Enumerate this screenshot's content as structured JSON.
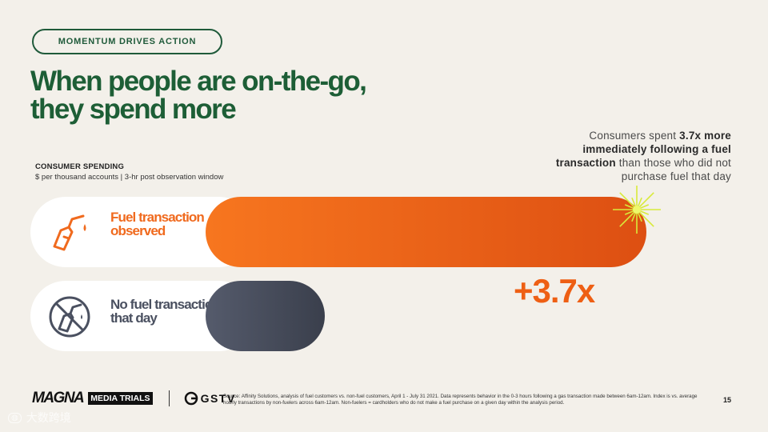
{
  "tag": "MOMENTUM DRIVES ACTION",
  "headline": {
    "line1": "When people are on-the-go,",
    "line2": "they spend more"
  },
  "callout": {
    "pre": "Consumers spent ",
    "bold": "3.7x more immediately following a fuel transaction",
    "post": " than those who did not purchase fuel that day"
  },
  "chart_title": "CONSUMER SPENDING",
  "chart_subtitle": "$ per thousand accounts  |  3-hr post observation window",
  "chart_data": {
    "type": "bar",
    "orientation": "horizontal",
    "categories": [
      "Fuel transaction observed",
      "No fuel transaction that day"
    ],
    "values": [
      3.7,
      1.0
    ],
    "annotation": "+3.7x",
    "colors": {
      "fuel": "#f26a1b",
      "nofuel": "#4c5263"
    }
  },
  "rows": [
    {
      "label": "Fuel transaction observed",
      "icon": "fuel-nozzle-icon"
    },
    {
      "label": "No fuel transaction that day",
      "icon": "no-fuel-icon"
    }
  ],
  "big_value": "+3.7x",
  "footer": {
    "brand1": "MAGNA",
    "brand2": "MEDIA TRIALS",
    "brand3": "GSTV",
    "source": "Source: Affinity Solutions, analysis of fuel customers vs. non-fuel customers, April 1 - July 31 2021. Data represents behavior in the 0-3 hours following a gas transaction made between 6am-12am. Index is vs. average hourly transactions by non-fuelers across 6am-12am. Non-fuelers = cardholders who do not make a fuel purchase on a given day within the analysis period.",
    "page": "15"
  },
  "watermark": "大数跨境"
}
